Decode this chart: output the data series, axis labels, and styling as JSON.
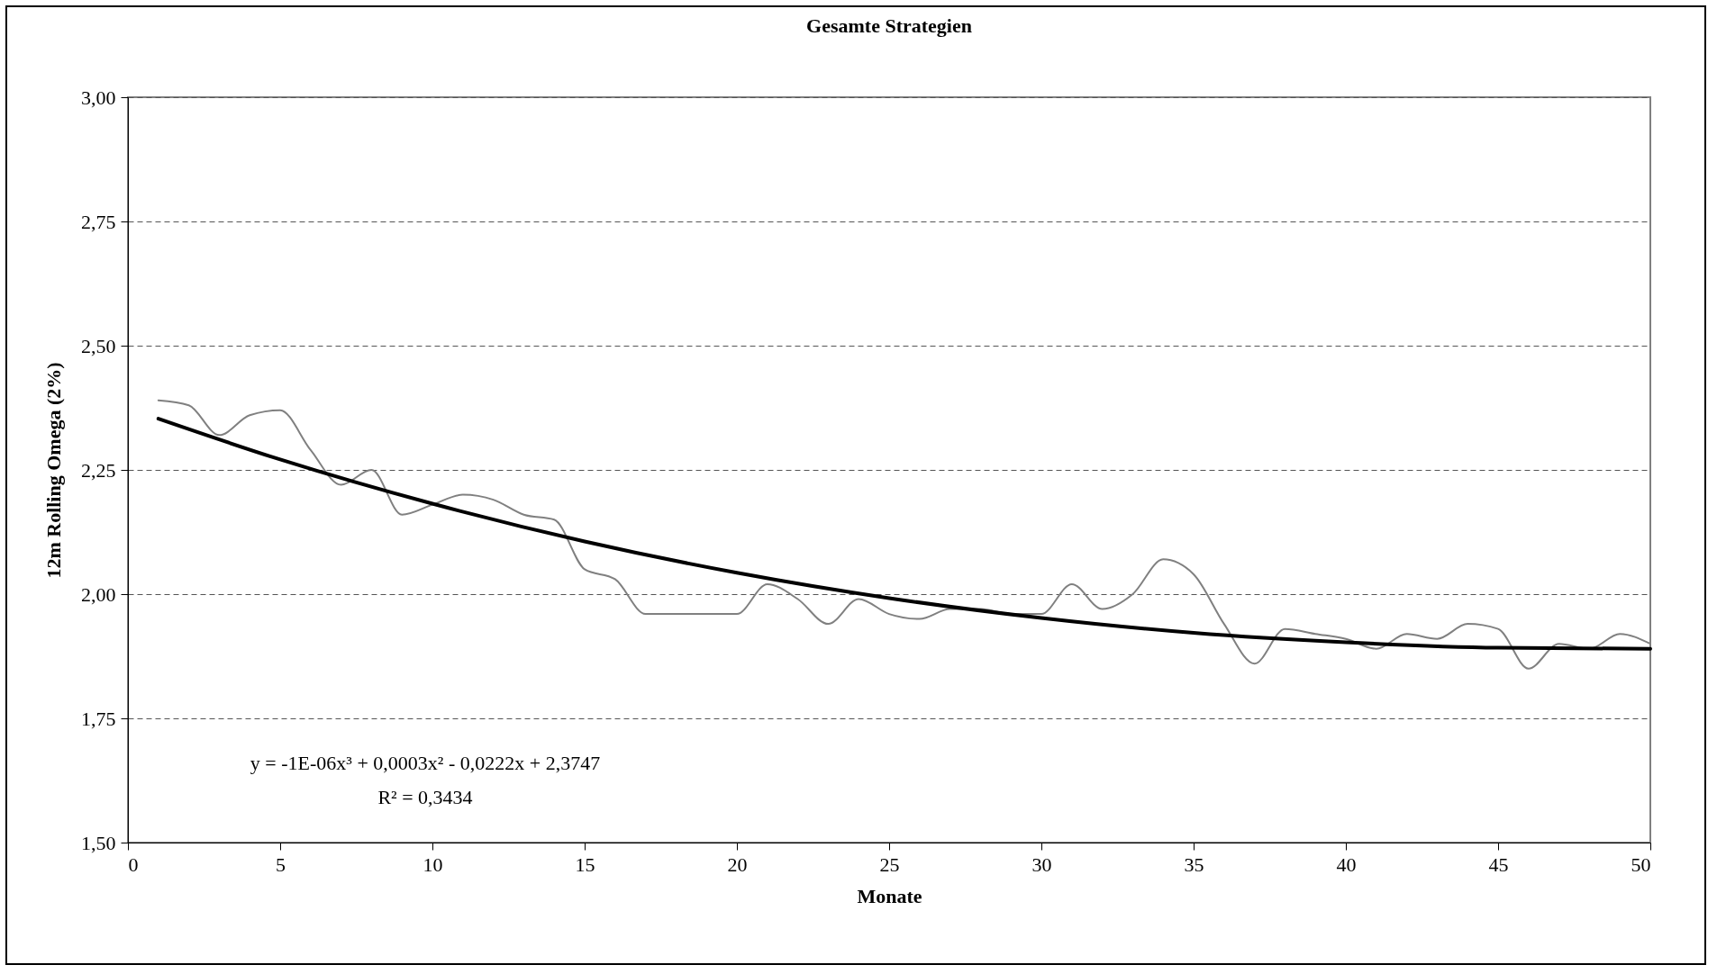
{
  "chart_data": {
    "type": "line",
    "title": "Gesamte Strategien",
    "xlabel": "Monate",
    "ylabel": "12m Rolling Omega (2%)",
    "series": [
      {
        "color": "#808080",
        "x": [
          1,
          2,
          3,
          4,
          5,
          6,
          7,
          8,
          9,
          10,
          11,
          12,
          13,
          14,
          15,
          16,
          17,
          18,
          19,
          20,
          21,
          22,
          23,
          24,
          25,
          26,
          27,
          28,
          29,
          30,
          31,
          32,
          33,
          34,
          35,
          36,
          37,
          38,
          39,
          40,
          41,
          42,
          43,
          44,
          45,
          46,
          47,
          48,
          49,
          50
        ],
        "values": [
          2.39,
          2.38,
          2.32,
          2.36,
          2.37,
          2.29,
          2.22,
          2.25,
          2.16,
          2.18,
          2.2,
          2.19,
          2.16,
          2.15,
          2.05,
          2.03,
          1.96,
          1.96,
          1.96,
          1.96,
          2.02,
          1.99,
          1.94,
          1.99,
          1.96,
          1.95,
          1.97,
          1.97,
          1.96,
          1.96,
          2.02,
          1.97,
          2.0,
          2.07,
          2.04,
          1.94,
          1.86,
          1.93,
          1.92,
          1.91,
          1.89,
          1.92,
          1.91,
          1.94,
          1.93,
          1.85,
          1.9,
          1.89,
          1.92,
          1.9
        ]
      },
      {
        "type": "line",
        "color": "#000000",
        "x": [
          1,
          5,
          10,
          15,
          20,
          25,
          30,
          35,
          40,
          45,
          50
        ],
        "values": [
          2.353,
          2.271,
          2.182,
          2.106,
          2.043,
          1.992,
          1.952,
          1.922,
          1.903,
          1.892,
          1.89
        ]
      }
    ],
    "xlim": [
      0,
      50
    ],
    "xticks": [
      0,
      5,
      10,
      15,
      20,
      25,
      30,
      35,
      40,
      45,
      50
    ],
    "ylim": [
      1.5,
      3.0
    ],
    "yticks": [
      {
        "value": 1.5,
        "label": "1,50"
      },
      {
        "value": 1.75,
        "label": "1,75"
      },
      {
        "value": 2.0,
        "label": "2,00"
      },
      {
        "value": 2.25,
        "label": "2,25"
      },
      {
        "value": 2.5,
        "label": "2,50"
      },
      {
        "value": 2.75,
        "label": "2,75"
      },
      {
        "value": 3.0,
        "label": "3,00"
      }
    ],
    "grid": "y",
    "marker": "none",
    "line_style": "solid",
    "annotations": [
      "y = -1E-06x³ + 0,0003x² - 0,0222x + 2,3747",
      "R² = 0,3434"
    ]
  }
}
